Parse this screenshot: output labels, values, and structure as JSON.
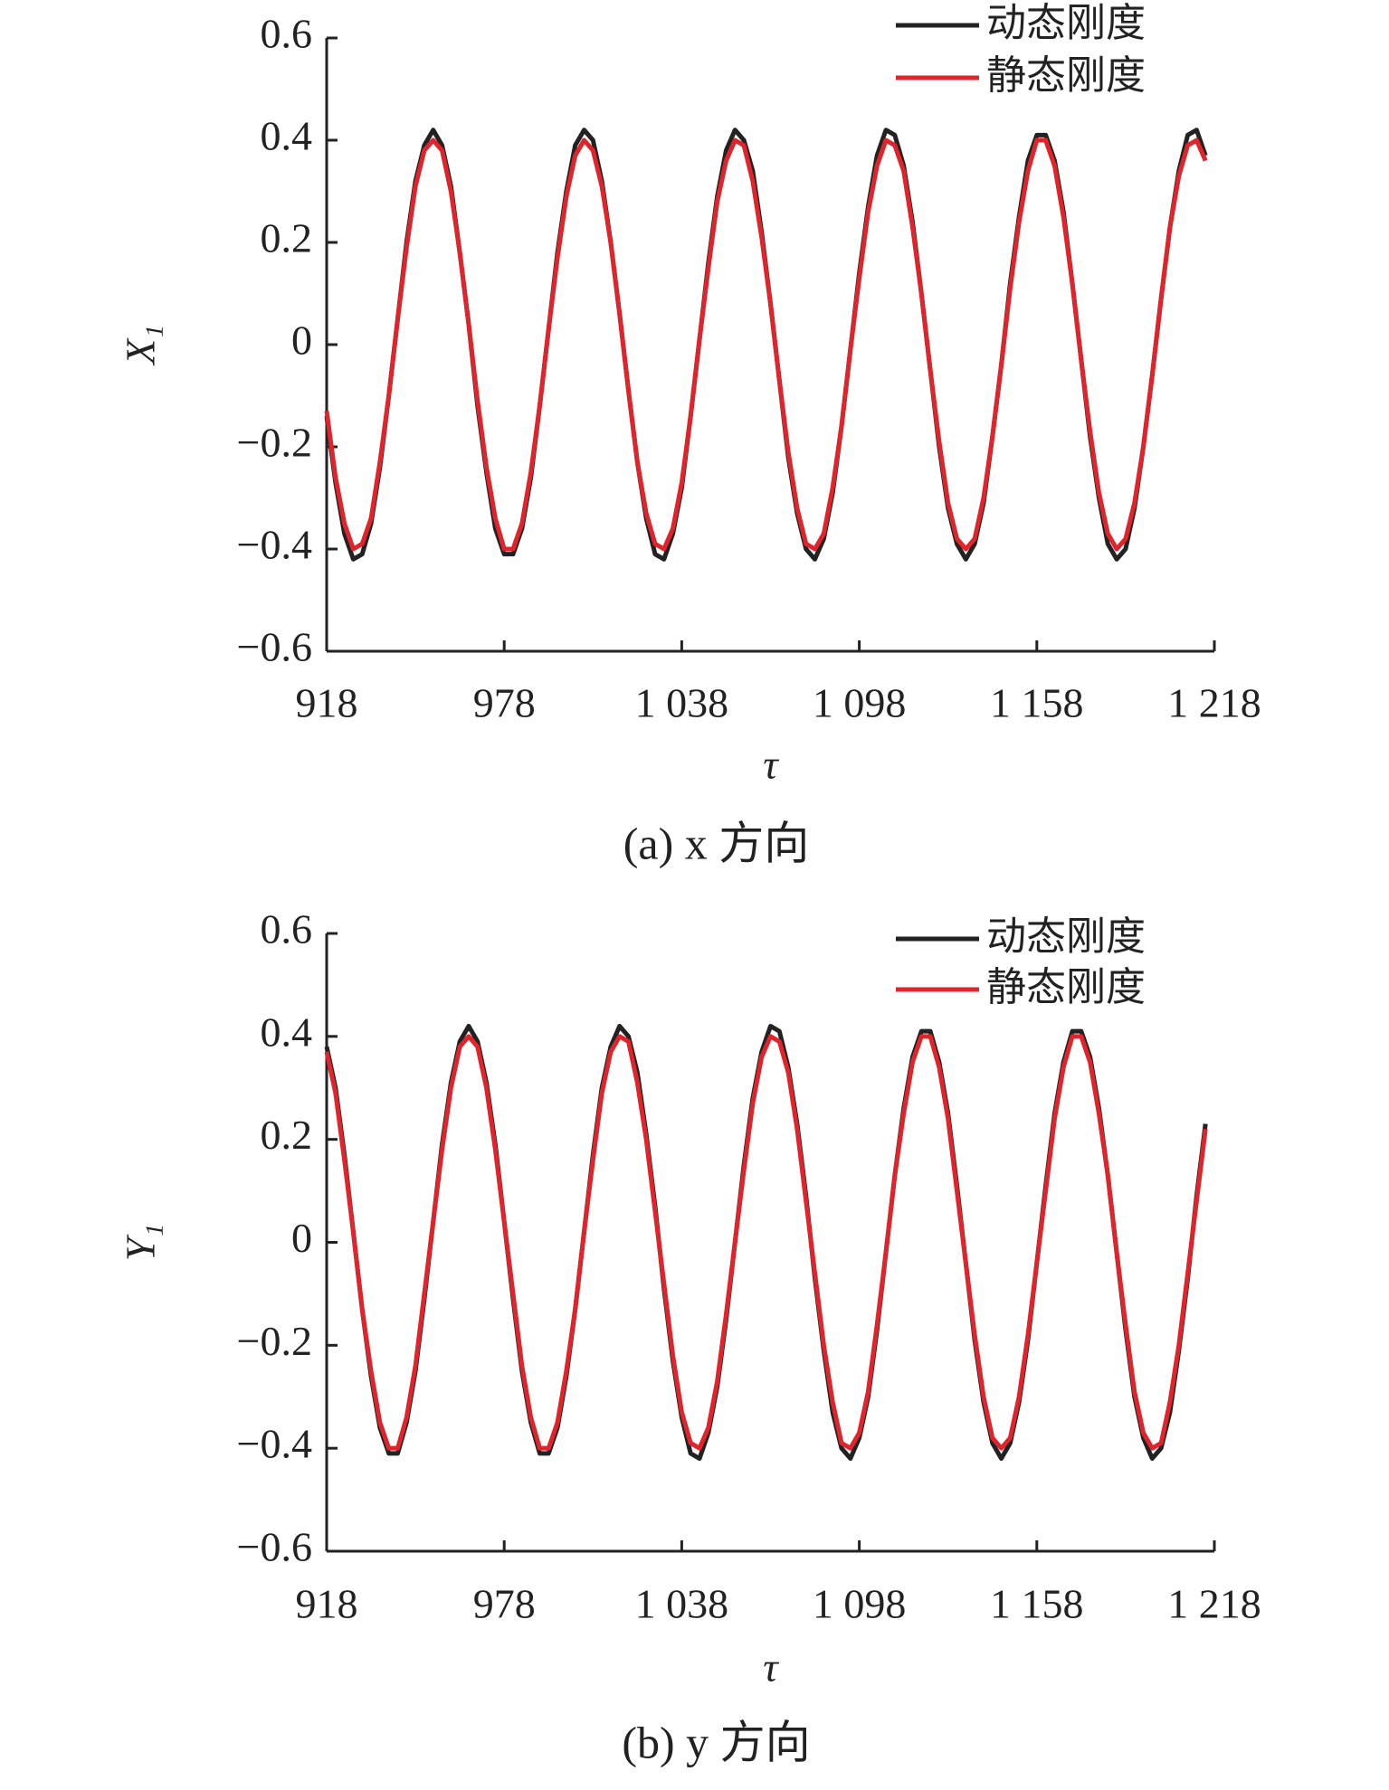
{
  "chart_data": [
    {
      "type": "line",
      "x_label": "τ",
      "y_label": "X₁",
      "caption": "(a) x 方向",
      "legend": "upper right",
      "x": [
        918,
        921,
        924,
        927,
        930,
        933,
        936,
        939,
        942,
        945,
        948,
        951,
        954,
        957,
        960,
        963,
        966,
        969,
        972,
        975,
        978,
        981,
        984,
        987,
        990,
        993,
        996,
        999,
        1002,
        1005,
        1008,
        1011,
        1014,
        1017,
        1020,
        1023,
        1026,
        1029,
        1032,
        1035,
        1038,
        1041,
        1044,
        1047,
        1050,
        1053,
        1056,
        1059,
        1062,
        1065,
        1068,
        1071,
        1074,
        1077,
        1080,
        1083,
        1086,
        1089,
        1092,
        1095,
        1098,
        1101,
        1104,
        1107,
        1110,
        1113,
        1116,
        1119,
        1122,
        1125,
        1128,
        1131,
        1134,
        1137,
        1140,
        1143,
        1146,
        1149,
        1152,
        1155,
        1158,
        1161,
        1164,
        1167,
        1170,
        1173,
        1176,
        1179,
        1182,
        1185,
        1188,
        1191,
        1194,
        1197,
        1200,
        1203,
        1206,
        1209,
        1212,
        1215
      ],
      "series": [
        {
          "name": "动态刚度",
          "color": "#222222",
          "values": [
            -0.14,
            -0.27,
            -0.37,
            -0.42,
            -0.41,
            -0.35,
            -0.24,
            -0.1,
            0.05,
            0.2,
            0.32,
            0.39,
            0.42,
            0.39,
            0.31,
            0.18,
            0.04,
            -0.12,
            -0.25,
            -0.36,
            -0.41,
            -0.41,
            -0.36,
            -0.26,
            -0.12,
            0.03,
            0.18,
            0.3,
            0.39,
            0.42,
            0.4,
            0.32,
            0.2,
            0.06,
            -0.09,
            -0.23,
            -0.34,
            -0.41,
            -0.42,
            -0.37,
            -0.28,
            -0.14,
            0.01,
            0.16,
            0.29,
            0.38,
            0.42,
            0.4,
            0.34,
            0.22,
            0.08,
            -0.07,
            -0.22,
            -0.33,
            -0.4,
            -0.42,
            -0.38,
            -0.29,
            -0.16,
            -0.01,
            0.14,
            0.27,
            0.37,
            0.42,
            0.41,
            0.35,
            0.24,
            0.1,
            -0.05,
            -0.2,
            -0.32,
            -0.39,
            -0.42,
            -0.39,
            -0.31,
            -0.18,
            -0.04,
            0.12,
            0.25,
            0.36,
            0.41,
            0.41,
            0.36,
            0.26,
            0.12,
            -0.03,
            -0.18,
            -0.3,
            -0.39,
            -0.42,
            -0.4,
            -0.32,
            -0.2,
            -0.06,
            0.09,
            0.23,
            0.34,
            0.41,
            0.42,
            0.37
          ]
        },
        {
          "name": "静态刚度",
          "color": "#e0242b",
          "values": [
            -0.13,
            -0.26,
            -0.35,
            -0.4,
            -0.39,
            -0.34,
            -0.23,
            -0.1,
            0.05,
            0.19,
            0.31,
            0.38,
            0.4,
            0.38,
            0.3,
            0.18,
            0.04,
            -0.11,
            -0.24,
            -0.34,
            -0.4,
            -0.4,
            -0.35,
            -0.25,
            -0.12,
            0.03,
            0.17,
            0.29,
            0.37,
            0.4,
            0.38,
            0.31,
            0.2,
            0.06,
            -0.09,
            -0.23,
            -0.33,
            -0.39,
            -0.4,
            -0.36,
            -0.27,
            -0.14,
            0.01,
            0.15,
            0.28,
            0.36,
            0.4,
            0.39,
            0.32,
            0.21,
            0.08,
            -0.07,
            -0.21,
            -0.32,
            -0.39,
            -0.4,
            -0.37,
            -0.28,
            -0.16,
            -0.01,
            0.13,
            0.26,
            0.35,
            0.4,
            0.39,
            0.34,
            0.23,
            0.1,
            -0.05,
            -0.19,
            -0.31,
            -0.38,
            -0.4,
            -0.38,
            -0.3,
            -0.18,
            -0.04,
            0.11,
            0.24,
            0.34,
            0.4,
            0.4,
            0.35,
            0.25,
            0.12,
            -0.03,
            -0.17,
            -0.29,
            -0.37,
            -0.4,
            -0.38,
            -0.31,
            -0.2,
            -0.06,
            0.09,
            0.23,
            0.33,
            0.39,
            0.4,
            0.36
          ]
        }
      ],
      "xlim": [
        918,
        1218
      ],
      "xticks": [
        918,
        978,
        {
          "value": 1038,
          "label": "1 038"
        },
        {
          "value": 1098,
          "label": "1 098"
        },
        {
          "value": 1158,
          "label": "1 158"
        },
        {
          "value": 1218,
          "label": "1 218"
        }
      ],
      "ylim": [
        -0.6,
        0.6
      ],
      "yticks": [
        {
          "value": -0.6,
          "label": "−0.6"
        },
        {
          "value": -0.4,
          "label": "−0.4"
        },
        {
          "value": -0.2,
          "label": "−0.2"
        },
        0,
        0.2,
        0.4,
        0.6
      ]
    },
    {
      "type": "line",
      "x_label": "τ",
      "y_label": "Y₁",
      "caption": "(b) y 方向",
      "legend": "upper right",
      "x": [
        918,
        921,
        924,
        927,
        930,
        933,
        936,
        939,
        942,
        945,
        948,
        951,
        954,
        957,
        960,
        963,
        966,
        969,
        972,
        975,
        978,
        981,
        984,
        987,
        990,
        993,
        996,
        999,
        1002,
        1005,
        1008,
        1011,
        1014,
        1017,
        1020,
        1023,
        1026,
        1029,
        1032,
        1035,
        1038,
        1041,
        1044,
        1047,
        1050,
        1053,
        1056,
        1059,
        1062,
        1065,
        1068,
        1071,
        1074,
        1077,
        1080,
        1083,
        1086,
        1089,
        1092,
        1095,
        1098,
        1101,
        1104,
        1107,
        1110,
        1113,
        1116,
        1119,
        1122,
        1125,
        1128,
        1131,
        1134,
        1137,
        1140,
        1143,
        1146,
        1149,
        1152,
        1155,
        1158,
        1161,
        1164,
        1167,
        1170,
        1173,
        1176,
        1179,
        1182,
        1185,
        1188,
        1191,
        1194,
        1197,
        1200,
        1203,
        1206,
        1209,
        1212,
        1215
      ],
      "series": [
        {
          "name": "动态刚度",
          "color": "#222222",
          "values": [
            0.38,
            0.3,
            0.17,
            0.02,
            -0.13,
            -0.26,
            -0.36,
            -0.41,
            -0.41,
            -0.35,
            -0.25,
            -0.11,
            0.04,
            0.19,
            0.31,
            0.39,
            0.42,
            0.39,
            0.31,
            0.19,
            0.04,
            -0.11,
            -0.25,
            -0.35,
            -0.41,
            -0.41,
            -0.36,
            -0.26,
            -0.13,
            0.02,
            0.17,
            0.3,
            0.38,
            0.42,
            0.4,
            0.33,
            0.21,
            0.07,
            -0.09,
            -0.23,
            -0.34,
            -0.41,
            -0.42,
            -0.37,
            -0.28,
            -0.15,
            0,
            0.15,
            0.28,
            0.37,
            0.42,
            0.41,
            0.34,
            0.23,
            0.09,
            -0.07,
            -0.21,
            -0.33,
            -0.4,
            -0.42,
            -0.38,
            -0.3,
            -0.17,
            -0.02,
            0.13,
            0.26,
            0.36,
            0.41,
            0.41,
            0.35,
            0.25,
            0.11,
            -0.04,
            -0.19,
            -0.31,
            -0.39,
            -0.42,
            -0.39,
            -0.31,
            -0.19,
            -0.04,
            0.11,
            0.25,
            0.35,
            0.41,
            0.41,
            0.36,
            0.26,
            0.13,
            -0.02,
            -0.17,
            -0.3,
            -0.38,
            -0.42,
            -0.4,
            -0.33,
            -0.21,
            -0.07,
            0.09,
            0.23
          ]
        },
        {
          "name": "静态刚度",
          "color": "#e0242b",
          "values": [
            0.37,
            0.29,
            0.16,
            0.02,
            -0.13,
            -0.25,
            -0.35,
            -0.4,
            -0.4,
            -0.34,
            -0.24,
            -0.1,
            0.04,
            0.18,
            0.3,
            0.38,
            0.4,
            0.38,
            0.3,
            0.18,
            0.04,
            -0.1,
            -0.24,
            -0.34,
            -0.4,
            -0.4,
            -0.35,
            -0.25,
            -0.13,
            0.02,
            0.16,
            0.29,
            0.37,
            0.4,
            0.39,
            0.31,
            0.2,
            0.06,
            -0.08,
            -0.22,
            -0.33,
            -0.39,
            -0.4,
            -0.36,
            -0.27,
            -0.14,
            0,
            0.14,
            0.27,
            0.36,
            0.4,
            0.39,
            0.33,
            0.22,
            0.08,
            -0.06,
            -0.2,
            -0.31,
            -0.39,
            -0.4,
            -0.37,
            -0.29,
            -0.16,
            -0.02,
            0.13,
            0.25,
            0.35,
            0.4,
            0.4,
            0.34,
            0.24,
            0.1,
            -0.04,
            -0.18,
            -0.3,
            -0.38,
            -0.4,
            -0.38,
            -0.3,
            -0.18,
            -0.04,
            0.1,
            0.24,
            0.34,
            0.4,
            0.4,
            0.35,
            0.25,
            0.13,
            -0.02,
            -0.16,
            -0.29,
            -0.37,
            -0.4,
            -0.39,
            -0.31,
            -0.2,
            -0.06,
            0.08,
            0.22
          ]
        }
      ],
      "xlim": [
        918,
        1218
      ],
      "xticks": [
        918,
        978,
        {
          "value": 1038,
          "label": "1 038"
        },
        {
          "value": 1098,
          "label": "1 098"
        },
        {
          "value": 1158,
          "label": "1 158"
        },
        {
          "value": 1218,
          "label": "1 218"
        }
      ],
      "ylim": [
        -0.6,
        0.6
      ],
      "yticks": [
        {
          "value": -0.6,
          "label": "−0.6"
        },
        {
          "value": -0.4,
          "label": "−0.4"
        },
        {
          "value": -0.2,
          "label": "−0.2"
        },
        0,
        0.2,
        0.4,
        0.6
      ]
    }
  ]
}
